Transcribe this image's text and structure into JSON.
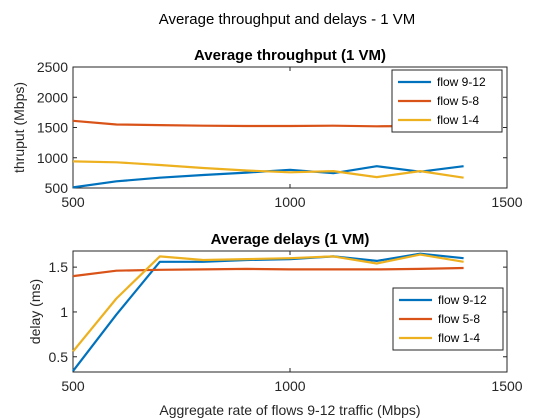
{
  "suptitle": "Average throughput and delays - 1 VM",
  "chart_data": [
    {
      "type": "line",
      "title": "Average throughput (1 VM)",
      "xlabel": "",
      "ylabel": "thruput (Mbps)",
      "xlim": [
        500,
        1500
      ],
      "ylim": [
        500,
        2500
      ],
      "xticks": [
        "500",
        "1000",
        "1500"
      ],
      "yticks": [
        "500",
        "1000",
        "1500",
        "2000",
        "2500"
      ],
      "legend_position": "top-right",
      "x": [
        500,
        600,
        700,
        800,
        900,
        1000,
        1100,
        1200,
        1300,
        1400
      ],
      "series": [
        {
          "name": "flow 9-12",
          "color": "#0072BD",
          "values": [
            510,
            610,
            670,
            715,
            755,
            800,
            745,
            860,
            770,
            860
          ]
        },
        {
          "name": "flow 5-8",
          "color": "#D95319",
          "values": [
            1610,
            1550,
            1540,
            1530,
            1525,
            1525,
            1530,
            1520,
            1525,
            1520
          ]
        },
        {
          "name": "flow 1-4",
          "color": "#EDB120",
          "values": [
            940,
            925,
            880,
            830,
            790,
            760,
            780,
            680,
            780,
            670
          ]
        }
      ]
    },
    {
      "type": "line",
      "title": "Average delays (1 VM)",
      "xlabel": "Aggregate rate of flows 9-12 traffic (Mbps)",
      "ylabel": "delay (ms)",
      "xlim": [
        500,
        1500
      ],
      "ylim": [
        0.33,
        1.68
      ],
      "xticks": [
        "500",
        "1000",
        "1500"
      ],
      "yticks": [
        "0.5",
        "1",
        "1.5"
      ],
      "legend_position": "bottom-right",
      "x": [
        500,
        600,
        700,
        800,
        900,
        1000,
        1100,
        1200,
        1300,
        1400
      ],
      "series": [
        {
          "name": "flow 9-12",
          "color": "#0072BD",
          "values": [
            0.34,
            0.97,
            1.56,
            1.56,
            1.58,
            1.59,
            1.62,
            1.57,
            1.65,
            1.6
          ]
        },
        {
          "name": "flow 5-8",
          "color": "#D95319",
          "values": [
            1.4,
            1.46,
            1.47,
            1.475,
            1.48,
            1.475,
            1.475,
            1.475,
            1.48,
            1.49
          ]
        },
        {
          "name": "flow 1-4",
          "color": "#EDB120",
          "values": [
            0.56,
            1.15,
            1.62,
            1.58,
            1.59,
            1.6,
            1.62,
            1.54,
            1.64,
            1.56
          ]
        }
      ]
    }
  ]
}
